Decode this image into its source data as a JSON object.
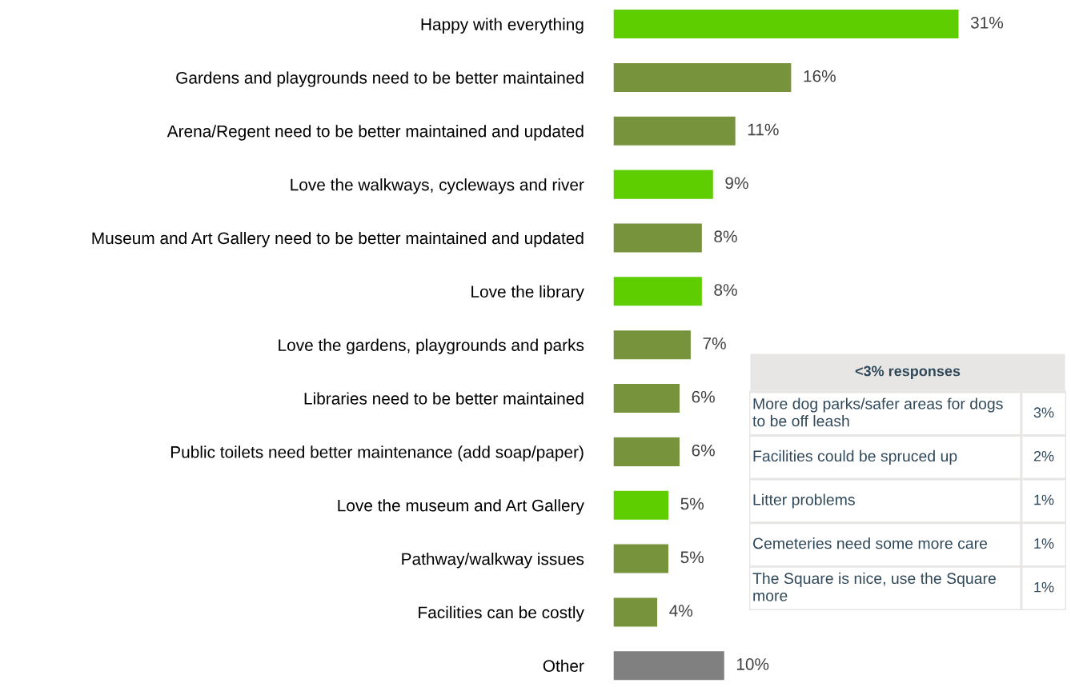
{
  "chart_data": [
    {
      "type": "bar",
      "orientation": "horizontal",
      "data_labels": true,
      "grid": false,
      "legend": false,
      "categories": [
        "Happy with everything",
        "Gardens and playgrounds need to be better maintained",
        "Arena/Regent need to be better maintained and updated",
        "Love the walkways, cycleways and river",
        "Museum and Art Gallery need to be better maintained and updated",
        "Love the library",
        "Love the gardens, playgrounds and parks",
        "Libraries need to be better maintained",
        "Public toilets need better maintenance (add soap/paper)",
        "Love the museum and Art Gallery",
        "Pathway/walkway issues",
        "Facilities can be costly",
        "Other"
      ],
      "values": [
        31,
        16,
        11,
        9,
        8,
        8,
        7,
        6,
        6,
        5,
        5,
        4,
        10
      ],
      "value_labels": [
        "31%",
        "16%",
        "11%",
        "9%",
        "8%",
        "8%",
        "7%",
        "6%",
        "6%",
        "5%",
        "5%",
        "4%",
        "10%"
      ],
      "colors": [
        "#5fce00",
        "#77933c",
        "#77933c",
        "#5fce00",
        "#77933c",
        "#5fce00",
        "#77933c",
        "#77933c",
        "#77933c",
        "#5fce00",
        "#77933c",
        "#77933c",
        "#808080"
      ]
    },
    {
      "type": "other",
      "title": "<3% responses",
      "categories": [
        "More dog parks/safer areas for dogs to be off leash",
        "Facilities could be spruced up",
        "Litter problems",
        "Cemeteries need some more care",
        "The Square is nice, use the Square more"
      ],
      "value_labels": [
        "3%",
        "2%",
        "1%",
        "1%",
        "1%"
      ]
    }
  ]
}
